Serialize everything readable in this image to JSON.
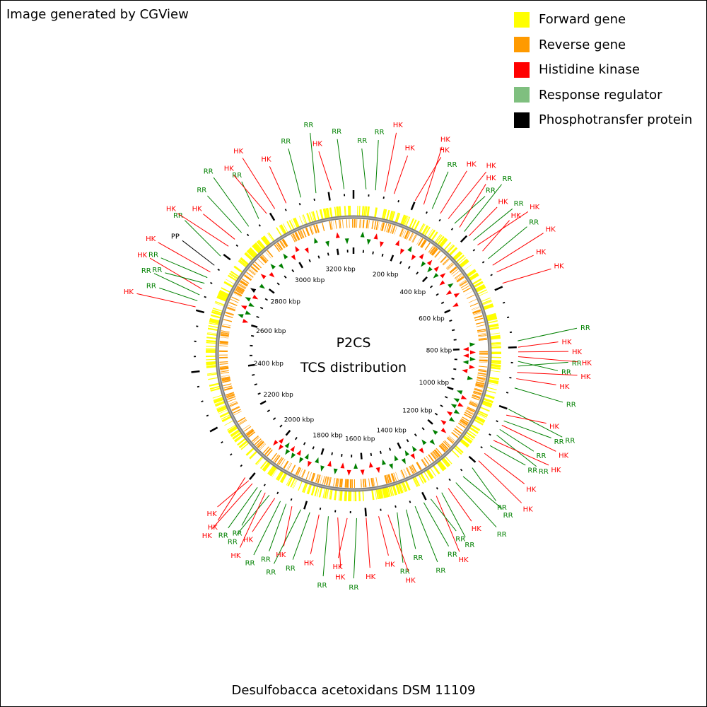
{
  "credit": "Image generated by CGView",
  "title": {
    "line1": "P2CS",
    "line2": "TCS distribution"
  },
  "species": "Desulfobacca acetoxidans DSM 11109",
  "legend": [
    {
      "label": "Forward gene",
      "color": "#ffff00"
    },
    {
      "label": "Reverse gene",
      "color": "#ff9a00"
    },
    {
      "label": "Histidine kinase",
      "color": "#ff0000"
    },
    {
      "label": "Response regulator",
      "color": "#7fbf7f"
    },
    {
      "label": "Phosphotransfer protein",
      "color": "#000000"
    }
  ],
  "colors": {
    "hk": "#ff0000",
    "rr": "#008000",
    "pp": "#000000",
    "backbone": "#808080",
    "forward": "#ffff00",
    "reverse": "#ff9a00"
  },
  "genome_kbp": 3280,
  "tick_labels": [
    "200 kbp",
    "400 kbp",
    "600 kbp",
    "800 kbp",
    "1000 kbp",
    "1200 kbp",
    "1400 kbp",
    "1600 kbp",
    "1800 kbp",
    "2000 kbp",
    "2200 kbp",
    "2400 kbp",
    "2600 kbp",
    "2800 kbp",
    "3000 kbp",
    "3200 kbp"
  ],
  "tcs_genes": [
    {
      "kbp": 40,
      "type": "RR"
    },
    {
      "kbp": 70,
      "type": "RR"
    },
    {
      "kbp": 100,
      "type": "HK"
    },
    {
      "kbp": 130,
      "type": "HK"
    },
    {
      "kbp": 200,
      "type": "HK"
    },
    {
      "kbp": 230,
      "type": "HK"
    },
    {
      "kbp": 260,
      "type": "RR"
    },
    {
      "kbp": 290,
      "type": "HK"
    },
    {
      "kbp": 320,
      "type": "HK"
    },
    {
      "kbp": 345,
      "type": "RR"
    },
    {
      "kbp": 365,
      "type": "HK"
    },
    {
      "kbp": 385,
      "type": "RR"
    },
    {
      "kbp": 405,
      "type": "HK"
    },
    {
      "kbp": 425,
      "type": "RR"
    },
    {
      "kbp": 445,
      "type": "HK"
    },
    {
      "kbp": 470,
      "type": "HK"
    },
    {
      "kbp": 500,
      "type": "RR"
    },
    {
      "kbp": 525,
      "type": "HK"
    },
    {
      "kbp": 550,
      "type": "HK"
    },
    {
      "kbp": 590,
      "type": "HK"
    },
    {
      "kbp": 780,
      "type": "RR"
    },
    {
      "kbp": 800,
      "type": "HK"
    },
    {
      "kbp": 815,
      "type": "HK"
    },
    {
      "kbp": 830,
      "type": "HK"
    },
    {
      "kbp": 845,
      "type": "RR"
    },
    {
      "kbp": 860,
      "type": "RR"
    },
    {
      "kbp": 880,
      "type": "HK"
    },
    {
      "kbp": 900,
      "type": "HK"
    },
    {
      "kbp": 930,
      "type": "RR"
    },
    {
      "kbp": 1000,
      "type": "RR"
    },
    {
      "kbp": 1020,
      "type": "HK"
    },
    {
      "kbp": 1040,
      "type": "RR"
    },
    {
      "kbp": 1055,
      "type": "HK"
    },
    {
      "kbp": 1070,
      "type": "RR"
    },
    {
      "kbp": 1090,
      "type": "RR"
    },
    {
      "kbp": 1110,
      "type": "HK"
    },
    {
      "kbp": 1130,
      "type": "RR"
    },
    {
      "kbp": 1160,
      "type": "HK"
    },
    {
      "kbp": 1190,
      "type": "HK"
    },
    {
      "kbp": 1220,
      "type": "RR"
    },
    {
      "kbp": 1260,
      "type": "RR"
    },
    {
      "kbp": 1290,
      "type": "RR"
    },
    {
      "kbp": 1320,
      "type": "HK"
    },
    {
      "kbp": 1345,
      "type": "RR"
    },
    {
      "kbp": 1365,
      "type": "HK"
    },
    {
      "kbp": 1385,
      "type": "RR"
    },
    {
      "kbp": 1410,
      "type": "RR"
    },
    {
      "kbp": 1440,
      "type": "RR"
    },
    {
      "kbp": 1470,
      "type": "RR"
    },
    {
      "kbp": 1500,
      "type": "RR"
    },
    {
      "kbp": 1530,
      "type": "HK"
    },
    {
      "kbp": 1560,
      "type": "HK"
    },
    {
      "kbp": 1600,
      "type": "HK"
    },
    {
      "kbp": 1630,
      "type": "RR"
    },
    {
      "kbp": 1660,
      "type": "HK"
    },
    {
      "kbp": 1690,
      "type": "HK"
    },
    {
      "kbp": 1720,
      "type": "RR"
    },
    {
      "kbp": 1750,
      "type": "HK"
    },
    {
      "kbp": 1780,
      "type": "RR"
    },
    {
      "kbp": 1810,
      "type": "RR"
    },
    {
      "kbp": 1840,
      "type": "HK"
    },
    {
      "kbp": 1860,
      "type": "RR"
    },
    {
      "kbp": 1880,
      "type": "RR"
    },
    {
      "kbp": 1900,
      "type": "HK"
    },
    {
      "kbp": 1920,
      "type": "RR"
    },
    {
      "kbp": 1935,
      "type": "HK"
    },
    {
      "kbp": 1950,
      "type": "RR"
    },
    {
      "kbp": 1965,
      "type": "RR"
    },
    {
      "kbp": 1985,
      "type": "HK"
    },
    {
      "kbp": 2000,
      "type": "HK"
    },
    {
      "kbp": 2015,
      "type": "HK"
    },
    {
      "kbp": 2610,
      "type": "HK"
    },
    {
      "kbp": 2630,
      "type": "RR"
    },
    {
      "kbp": 2650,
      "type": "RR"
    },
    {
      "kbp": 2670,
      "type": "HK"
    },
    {
      "kbp": 2690,
      "type": "RR"
    },
    {
      "kbp": 2710,
      "type": "RR"
    },
    {
      "kbp": 2730,
      "type": "HK"
    },
    {
      "kbp": 2755,
      "type": "PP"
    },
    {
      "kbp": 2790,
      "type": "RR"
    },
    {
      "kbp": 2830,
      "type": "HK"
    },
    {
      "kbp": 2860,
      "type": "HK"
    },
    {
      "kbp": 2890,
      "type": "RR"
    },
    {
      "kbp": 2920,
      "type": "RR"
    },
    {
      "kbp": 2960,
      "type": "RR"
    },
    {
      "kbp": 2990,
      "type": "HK"
    },
    {
      "kbp": 3020,
      "type": "HK"
    },
    {
      "kbp": 3060,
      "type": "HK"
    },
    {
      "kbp": 3110,
      "type": "RR"
    },
    {
      "kbp": 3160,
      "type": "RR"
    },
    {
      "kbp": 3210,
      "type": "HK"
    },
    {
      "kbp": 3250,
      "type": "RR"
    }
  ]
}
